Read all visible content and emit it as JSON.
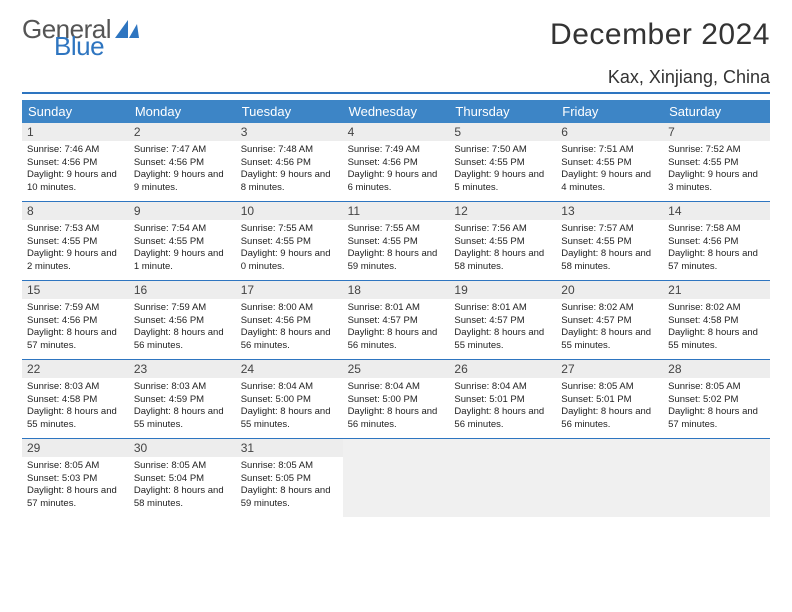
{
  "logo": {
    "line1": "General",
    "line2": "Blue",
    "icon_color": "#2e75c0"
  },
  "title": "December 2024",
  "subtitle": "Kax, Xinjiang, China",
  "colors": {
    "header_bg": "#3d85c6",
    "header_text": "#ffffff",
    "accent_line": "#2e75c0",
    "daynum_bg": "#ededed",
    "body_text": "#222222",
    "empty_bg": "#f0f0f0"
  },
  "day_headers": [
    "Sunday",
    "Monday",
    "Tuesday",
    "Wednesday",
    "Thursday",
    "Friday",
    "Saturday"
  ],
  "weeks": [
    [
      {
        "n": "1",
        "sr": "Sunrise: 7:46 AM",
        "ss": "Sunset: 4:56 PM",
        "dl": "Daylight: 9 hours and 10 minutes."
      },
      {
        "n": "2",
        "sr": "Sunrise: 7:47 AM",
        "ss": "Sunset: 4:56 PM",
        "dl": "Daylight: 9 hours and 9 minutes."
      },
      {
        "n": "3",
        "sr": "Sunrise: 7:48 AM",
        "ss": "Sunset: 4:56 PM",
        "dl": "Daylight: 9 hours and 8 minutes."
      },
      {
        "n": "4",
        "sr": "Sunrise: 7:49 AM",
        "ss": "Sunset: 4:56 PM",
        "dl": "Daylight: 9 hours and 6 minutes."
      },
      {
        "n": "5",
        "sr": "Sunrise: 7:50 AM",
        "ss": "Sunset: 4:55 PM",
        "dl": "Daylight: 9 hours and 5 minutes."
      },
      {
        "n": "6",
        "sr": "Sunrise: 7:51 AM",
        "ss": "Sunset: 4:55 PM",
        "dl": "Daylight: 9 hours and 4 minutes."
      },
      {
        "n": "7",
        "sr": "Sunrise: 7:52 AM",
        "ss": "Sunset: 4:55 PM",
        "dl": "Daylight: 9 hours and 3 minutes."
      }
    ],
    [
      {
        "n": "8",
        "sr": "Sunrise: 7:53 AM",
        "ss": "Sunset: 4:55 PM",
        "dl": "Daylight: 9 hours and 2 minutes."
      },
      {
        "n": "9",
        "sr": "Sunrise: 7:54 AM",
        "ss": "Sunset: 4:55 PM",
        "dl": "Daylight: 9 hours and 1 minute."
      },
      {
        "n": "10",
        "sr": "Sunrise: 7:55 AM",
        "ss": "Sunset: 4:55 PM",
        "dl": "Daylight: 9 hours and 0 minutes."
      },
      {
        "n": "11",
        "sr": "Sunrise: 7:55 AM",
        "ss": "Sunset: 4:55 PM",
        "dl": "Daylight: 8 hours and 59 minutes."
      },
      {
        "n": "12",
        "sr": "Sunrise: 7:56 AM",
        "ss": "Sunset: 4:55 PM",
        "dl": "Daylight: 8 hours and 58 minutes."
      },
      {
        "n": "13",
        "sr": "Sunrise: 7:57 AM",
        "ss": "Sunset: 4:55 PM",
        "dl": "Daylight: 8 hours and 58 minutes."
      },
      {
        "n": "14",
        "sr": "Sunrise: 7:58 AM",
        "ss": "Sunset: 4:56 PM",
        "dl": "Daylight: 8 hours and 57 minutes."
      }
    ],
    [
      {
        "n": "15",
        "sr": "Sunrise: 7:59 AM",
        "ss": "Sunset: 4:56 PM",
        "dl": "Daylight: 8 hours and 57 minutes."
      },
      {
        "n": "16",
        "sr": "Sunrise: 7:59 AM",
        "ss": "Sunset: 4:56 PM",
        "dl": "Daylight: 8 hours and 56 minutes."
      },
      {
        "n": "17",
        "sr": "Sunrise: 8:00 AM",
        "ss": "Sunset: 4:56 PM",
        "dl": "Daylight: 8 hours and 56 minutes."
      },
      {
        "n": "18",
        "sr": "Sunrise: 8:01 AM",
        "ss": "Sunset: 4:57 PM",
        "dl": "Daylight: 8 hours and 56 minutes."
      },
      {
        "n": "19",
        "sr": "Sunrise: 8:01 AM",
        "ss": "Sunset: 4:57 PM",
        "dl": "Daylight: 8 hours and 55 minutes."
      },
      {
        "n": "20",
        "sr": "Sunrise: 8:02 AM",
        "ss": "Sunset: 4:57 PM",
        "dl": "Daylight: 8 hours and 55 minutes."
      },
      {
        "n": "21",
        "sr": "Sunrise: 8:02 AM",
        "ss": "Sunset: 4:58 PM",
        "dl": "Daylight: 8 hours and 55 minutes."
      }
    ],
    [
      {
        "n": "22",
        "sr": "Sunrise: 8:03 AM",
        "ss": "Sunset: 4:58 PM",
        "dl": "Daylight: 8 hours and 55 minutes."
      },
      {
        "n": "23",
        "sr": "Sunrise: 8:03 AM",
        "ss": "Sunset: 4:59 PM",
        "dl": "Daylight: 8 hours and 55 minutes."
      },
      {
        "n": "24",
        "sr": "Sunrise: 8:04 AM",
        "ss": "Sunset: 5:00 PM",
        "dl": "Daylight: 8 hours and 55 minutes."
      },
      {
        "n": "25",
        "sr": "Sunrise: 8:04 AM",
        "ss": "Sunset: 5:00 PM",
        "dl": "Daylight: 8 hours and 56 minutes."
      },
      {
        "n": "26",
        "sr": "Sunrise: 8:04 AM",
        "ss": "Sunset: 5:01 PM",
        "dl": "Daylight: 8 hours and 56 minutes."
      },
      {
        "n": "27",
        "sr": "Sunrise: 8:05 AM",
        "ss": "Sunset: 5:01 PM",
        "dl": "Daylight: 8 hours and 56 minutes."
      },
      {
        "n": "28",
        "sr": "Sunrise: 8:05 AM",
        "ss": "Sunset: 5:02 PM",
        "dl": "Daylight: 8 hours and 57 minutes."
      }
    ],
    [
      {
        "n": "29",
        "sr": "Sunrise: 8:05 AM",
        "ss": "Sunset: 5:03 PM",
        "dl": "Daylight: 8 hours and 57 minutes."
      },
      {
        "n": "30",
        "sr": "Sunrise: 8:05 AM",
        "ss": "Sunset: 5:04 PM",
        "dl": "Daylight: 8 hours and 58 minutes."
      },
      {
        "n": "31",
        "sr": "Sunrise: 8:05 AM",
        "ss": "Sunset: 5:05 PM",
        "dl": "Daylight: 8 hours and 59 minutes."
      },
      {
        "empty": true
      },
      {
        "empty": true
      },
      {
        "empty": true
      },
      {
        "empty": true
      }
    ]
  ]
}
